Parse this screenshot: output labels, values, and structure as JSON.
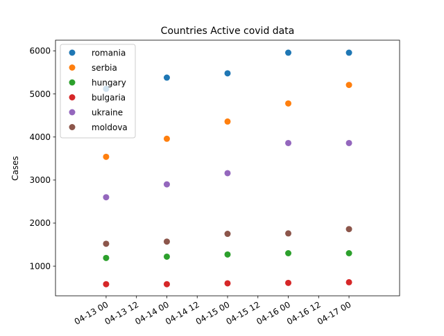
{
  "chart_data": {
    "type": "scatter",
    "title": "Countries Active covid data",
    "xlabel": "",
    "ylabel": "Cases",
    "x": [
      "04-13 00",
      "04-14 00",
      "04-15 00",
      "04-16 00",
      "04-17 00"
    ],
    "x_hours": [
      0,
      24,
      48,
      72,
      96
    ],
    "xlim_hours": [
      -20,
      116
    ],
    "ylim": [
      310,
      6250
    ],
    "x_ticks": [
      "04-13 00",
      "04-13 12",
      "04-14 00",
      "04-14 12",
      "04-15 00",
      "04-15 12",
      "04-16 00",
      "04-16 12",
      "04-17 00"
    ],
    "y_ticks": [
      1000,
      2000,
      3000,
      4000,
      5000,
      6000
    ],
    "grid": false,
    "legend_position": "upper-left",
    "series": [
      {
        "name": "romania",
        "color": "#1f77b4",
        "values": [
          5120,
          5380,
          5480,
          5960,
          5960
        ]
      },
      {
        "name": "serbia",
        "color": "#ff7f0e",
        "values": [
          3540,
          3960,
          4360,
          4780,
          5210
        ]
      },
      {
        "name": "hungary",
        "color": "#2ca02c",
        "values": [
          1190,
          1220,
          1270,
          1300,
          1300
        ]
      },
      {
        "name": "bulgaria",
        "color": "#d62728",
        "values": [
          580,
          580,
          600,
          610,
          625
        ]
      },
      {
        "name": "ukraine",
        "color": "#9467bd",
        "values": [
          2600,
          2900,
          3160,
          3860,
          3860
        ]
      },
      {
        "name": "moldova",
        "color": "#8c564b",
        "values": [
          1520,
          1570,
          1750,
          1760,
          1860
        ]
      }
    ]
  }
}
